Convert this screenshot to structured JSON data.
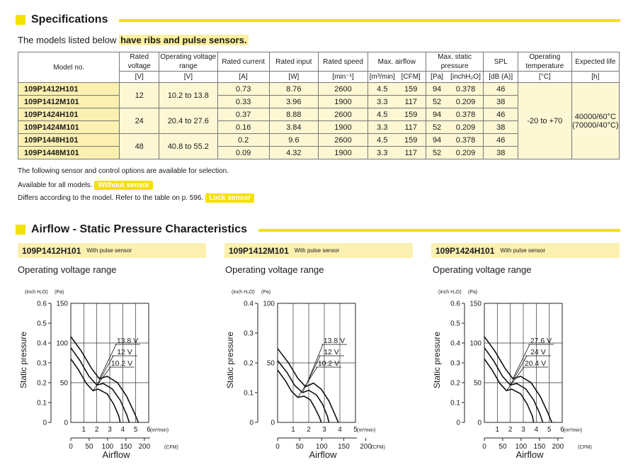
{
  "specs": {
    "title": "Specifications",
    "intro_prefix": "The models listed below ",
    "intro_highlight": "have ribs and pulse sensors.",
    "headers": {
      "model": "Model no.",
      "rated_voltage": "Rated voltage",
      "rated_voltage_unit": "[V]",
      "op_range": "Operating voltage range",
      "op_range_unit": "[V]",
      "rated_current": "Rated current",
      "rated_current_unit": "[A]",
      "rated_input": "Rated input",
      "rated_input_unit": "[W]",
      "rated_speed": "Rated speed",
      "rated_speed_unit": "[min⁻¹]",
      "max_airflow": "Max. airflow",
      "airflow_unit1": "[m³/min]",
      "airflow_unit2": "[CFM]",
      "max_static": "Max. static pressure",
      "static_unit1": "[Pa]",
      "static_unit2": "[inchH₂O]",
      "spl": "SPL",
      "spl_unit": "[dB (A)]",
      "op_temp": "Operating temperature",
      "op_temp_unit": "[°C]",
      "life": "Expected life",
      "life_unit": "[h]"
    },
    "rows": [
      {
        "model": "109P1412H101",
        "current": "0.73",
        "input": "8.76",
        "speed": "2600",
        "air_m3": "4.5",
        "air_cfm": "159",
        "pa": "94",
        "inch": "0.378",
        "spl": "46"
      },
      {
        "model": "109P1412M101",
        "current": "0.33",
        "input": "3.96",
        "speed": "1900",
        "air_m3": "3.3",
        "air_cfm": "117",
        "pa": "52",
        "inch": "0.209",
        "spl": "38"
      },
      {
        "model": "109P1424H101",
        "current": "0.37",
        "input": "8.88",
        "speed": "2600",
        "air_m3": "4.5",
        "air_cfm": "159",
        "pa": "94",
        "inch": "0.378",
        "spl": "46"
      },
      {
        "model": "109P1424M101",
        "current": "0.16",
        "input": "3.84",
        "speed": "1900",
        "air_m3": "3.3",
        "air_cfm": "117",
        "pa": "52",
        "inch": "0.209",
        "spl": "38"
      },
      {
        "model": "109P1448H101",
        "current": "0.2",
        "input": "9.6",
        "speed": "2600",
        "air_m3": "4.5",
        "air_cfm": "159",
        "pa": "94",
        "inch": "0.378",
        "spl": "46"
      },
      {
        "model": "109P1448M101",
        "current": "0.09",
        "input": "4.32",
        "speed": "1900",
        "air_m3": "3.3",
        "air_cfm": "117",
        "pa": "52",
        "inch": "0.209",
        "spl": "38"
      }
    ],
    "groups": [
      {
        "voltage": "12",
        "range": "10.2 to 13.8"
      },
      {
        "voltage": "24",
        "range": "20.4 to 27.6"
      },
      {
        "voltage": "48",
        "range": "40.8 to 55.2"
      }
    ],
    "temp": "-20 to +70",
    "life_line1": "40000/60°C",
    "life_line2": "(70000/40°C)"
  },
  "notes": {
    "line1": "The following sensor and control options are available for selection.",
    "line2": "Available for all models.",
    "badge2": "Without sensor",
    "line3": "Differs according to the model. Refer to the table on p. 596.",
    "badge3": "Lock sensor"
  },
  "airflow_section": {
    "title": "Airflow - Static Pressure Characteristics",
    "panel_with": "With pulse sensor",
    "panel_subtitle": "Operating voltage range",
    "units_left": "(inch H₂O)",
    "units_right": "(Pa)",
    "ylabel": "Static pressure",
    "xlabel": "Airflow",
    "m3_unit": "(m³/min)",
    "cfm_unit": "(CFM)"
  },
  "chart_data": [
    {
      "type": "line",
      "title": "109P1412H101",
      "xlabel": "Airflow",
      "ylabel": "Static pressure",
      "x_unit": "m³/min",
      "y_unit": "Pa",
      "xlim": [
        0,
        6
      ],
      "ylim": [
        0,
        150
      ],
      "x_ticks": [
        "1",
        "2",
        "3",
        "4",
        "5",
        "6"
      ],
      "cfm_ticks": [
        "0",
        "50",
        "100",
        "150",
        "200"
      ],
      "inch_ticks": [
        "0",
        "0.1",
        "0.2",
        "0.3",
        "0.4",
        "0.5",
        "0.6"
      ],
      "pa_ticks": [
        "0",
        "50",
        "100",
        "150"
      ],
      "series": [
        {
          "name": "13.8 V",
          "x": [
            0,
            0.8,
            1.6,
            2.2,
            2.8,
            3.6,
            4.3,
            4.9,
            5.2
          ],
          "y": [
            108,
            90,
            68,
            55,
            58,
            50,
            33,
            12,
            0
          ]
        },
        {
          "name": "12 V",
          "x": [
            0,
            0.7,
            1.4,
            2,
            2.5,
            3.2,
            3.8,
            4.3,
            4.5
          ],
          "y": [
            94,
            78,
            58,
            47,
            49,
            42,
            28,
            10,
            0
          ]
        },
        {
          "name": "10.2 V",
          "x": [
            0,
            0.6,
            1.2,
            1.7,
            2.1,
            2.8,
            3.3,
            3.7,
            3.8
          ],
          "y": [
            80,
            66,
            49,
            40,
            42,
            36,
            23,
            8,
            0
          ]
        }
      ]
    },
    {
      "type": "line",
      "title": "109P1412M101",
      "xlabel": "Airflow",
      "ylabel": "Static pressure",
      "x_unit": "m³/min",
      "y_unit": "Pa",
      "xlim": [
        0,
        5
      ],
      "ylim": [
        0,
        100
      ],
      "x_ticks": [
        "1",
        "2",
        "3",
        "4",
        "5"
      ],
      "cfm_ticks": [
        "0",
        "50",
        "100",
        "150",
        "200"
      ],
      "inch_ticks": [
        "0",
        "0.1",
        "0.2",
        "0.3",
        "0.4"
      ],
      "pa_ticks": [
        "0",
        "50",
        "100"
      ],
      "series": [
        {
          "name": "13.8 V",
          "x": [
            0,
            0.7,
            1.3,
            1.8,
            2.3,
            2.8,
            3.3,
            3.7,
            3.9
          ],
          "y": [
            62,
            50,
            37,
            30,
            33,
            28,
            18,
            6,
            0
          ]
        },
        {
          "name": "12 V",
          "x": [
            0,
            0.6,
            1.1,
            1.6,
            2,
            2.5,
            2.9,
            3.2,
            3.3
          ],
          "y": [
            52,
            42,
            31,
            25,
            27,
            23,
            15,
            5,
            0
          ]
        },
        {
          "name": "10.2 V",
          "x": [
            0,
            0.5,
            0.9,
            1.3,
            1.7,
            2.1,
            2.4,
            2.7,
            2.8
          ],
          "y": [
            44,
            35,
            26,
            21,
            22,
            19,
            12,
            4,
            0
          ]
        }
      ]
    },
    {
      "type": "line",
      "title": "109P1424H101",
      "xlabel": "Airflow",
      "ylabel": "Static pressure",
      "x_unit": "m³/min",
      "y_unit": "Pa",
      "xlim": [
        0,
        6
      ],
      "ylim": [
        0,
        150
      ],
      "x_ticks": [
        "1",
        "2",
        "3",
        "4",
        "5",
        "6"
      ],
      "cfm_ticks": [
        "0",
        "50",
        "100",
        "150",
        "200"
      ],
      "inch_ticks": [
        "0",
        "0.1",
        "0.2",
        "0.3",
        "0.4",
        "0.5",
        "0.6"
      ],
      "pa_ticks": [
        "0",
        "50",
        "100",
        "150"
      ],
      "series": [
        {
          "name": "27.6 V",
          "x": [
            0,
            0.8,
            1.6,
            2.2,
            2.8,
            3.6,
            4.3,
            4.9,
            5.2
          ],
          "y": [
            108,
            90,
            68,
            55,
            58,
            50,
            33,
            12,
            0
          ]
        },
        {
          "name": "24 V",
          "x": [
            0,
            0.7,
            1.4,
            2,
            2.5,
            3.2,
            3.8,
            4.3,
            4.5
          ],
          "y": [
            94,
            78,
            58,
            47,
            49,
            42,
            28,
            10,
            0
          ]
        },
        {
          "name": "20.4 V",
          "x": [
            0,
            0.6,
            1.2,
            1.7,
            2.1,
            2.8,
            3.3,
            3.7,
            3.8
          ],
          "y": [
            80,
            66,
            49,
            40,
            42,
            36,
            23,
            8,
            0
          ]
        }
      ]
    }
  ]
}
